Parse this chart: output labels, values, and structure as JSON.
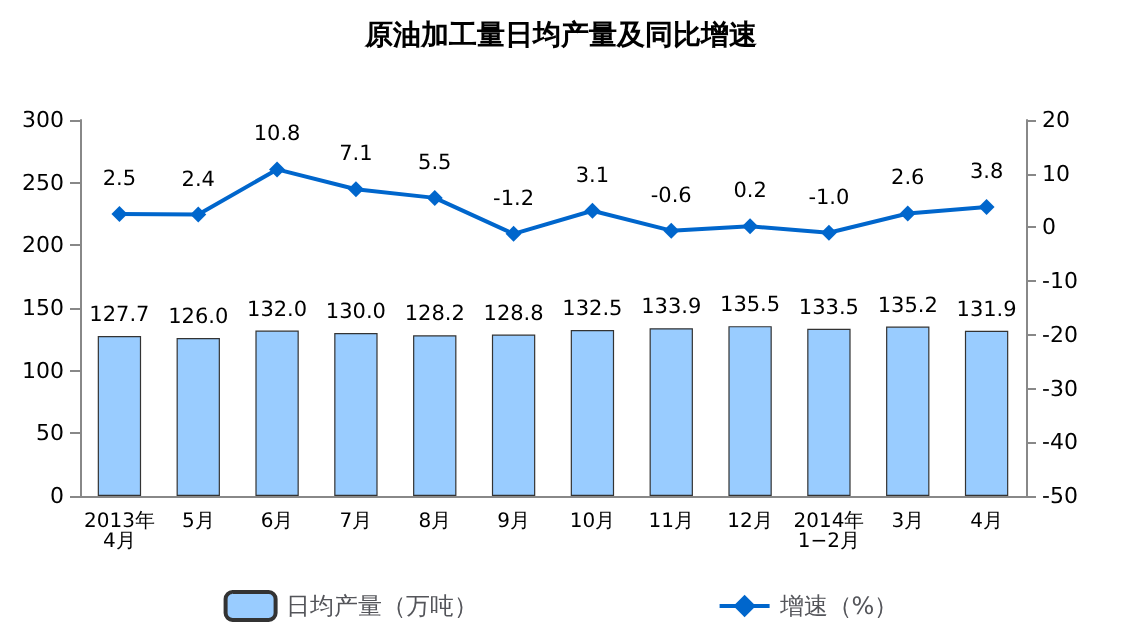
{
  "chart_data": {
    "type": "bar",
    "title": "原油加工量日均产量及同比增速",
    "categories": [
      "2013年\n4月",
      "5月",
      "6月",
      "7月",
      "8月",
      "9月",
      "10月",
      "11月",
      "12月",
      "2014年\n1−2月",
      "3月",
      "4月"
    ],
    "series": [
      {
        "name": "日均产量（万吨）",
        "color": "#99ccff",
        "values": [
          127.7,
          126.0,
          132.0,
          130.0,
          128.2,
          128.8,
          132.5,
          133.9,
          135.5,
          133.5,
          135.2,
          131.9
        ],
        "value_labels": [
          "127.7",
          "126.0",
          "132.0",
          "130.0",
          "128.2",
          "128.8",
          "132.5",
          "133.9",
          "135.5",
          "133.5",
          "135.2",
          "131.9"
        ]
      },
      {
        "name": "增速（%）",
        "type": "line",
        "axis": "y2",
        "color": "#0066cc",
        "marker": "diamond",
        "values": [
          2.5,
          2.4,
          10.8,
          7.1,
          5.5,
          -1.2,
          3.1,
          -0.6,
          0.2,
          -1.0,
          2.6,
          3.8
        ],
        "value_labels": [
          "2.5",
          "2.4",
          "10.8",
          "7.1",
          "5.5",
          "-1.2",
          "3.1",
          "-0.6",
          "0.2",
          "-1.0",
          "2.6",
          "3.8"
        ]
      }
    ],
    "ylim": [
      0,
      300
    ],
    "yticks": [
      0,
      50,
      100,
      150,
      200,
      250,
      300
    ],
    "y2lim": [
      -50,
      20
    ],
    "y2ticks": [
      -50,
      -40,
      -30,
      -20,
      -10,
      0,
      10,
      20
    ],
    "grid": false,
    "legend": "bottom"
  }
}
